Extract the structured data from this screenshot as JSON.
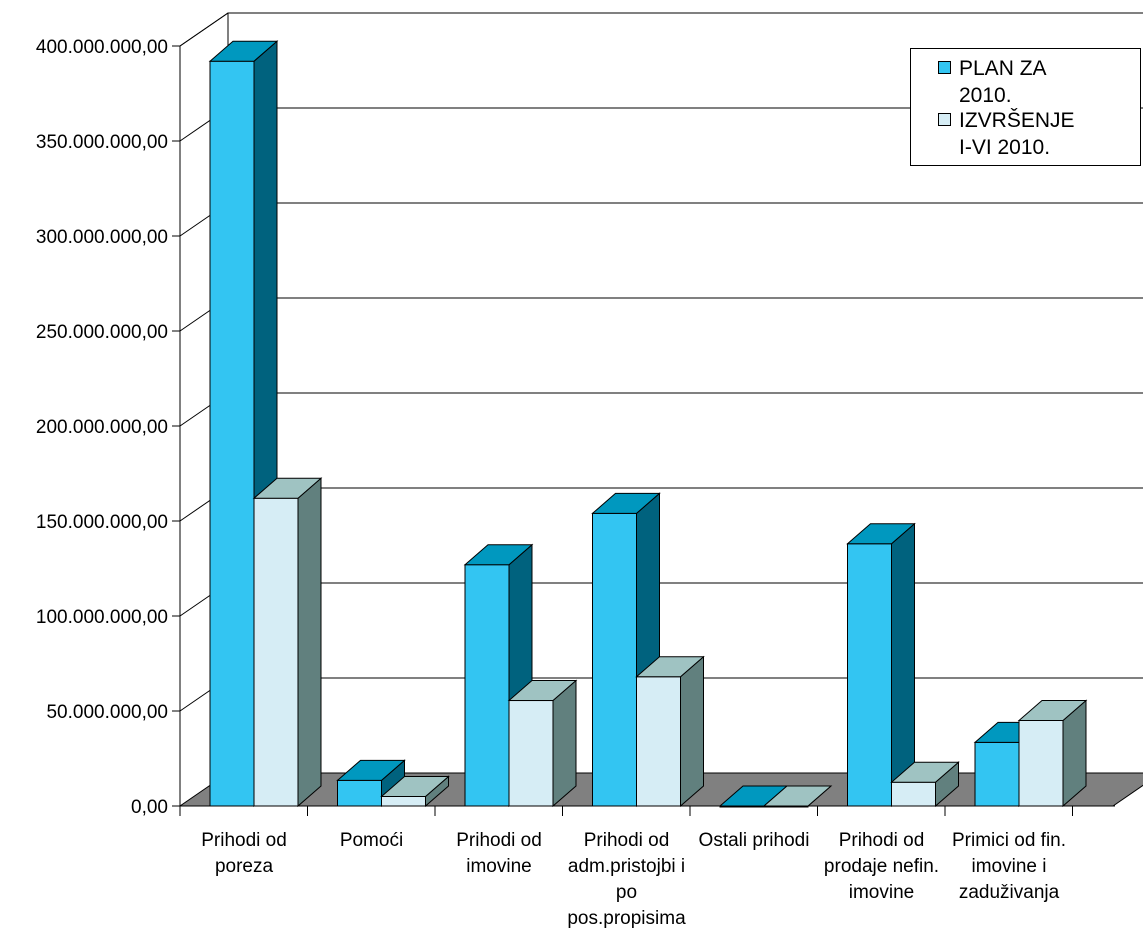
{
  "chart_data": {
    "type": "bar",
    "categories": [
      [
        "Prihodi od",
        "poreza"
      ],
      [
        "Pomoći"
      ],
      [
        "Prihodi od",
        "imovine"
      ],
      [
        "Prihodi od",
        "adm.pristojbi i",
        "po",
        "pos.propisima"
      ],
      [
        "Ostali prihodi"
      ],
      [
        "Prihodi od",
        "prodaje nefin.",
        "imovine"
      ],
      [
        "Primici od fin.",
        "imovine i",
        "zaduživanja"
      ]
    ],
    "series": [
      {
        "name": "PLAN ZA 2010.",
        "values": [
          392000000,
          13500000,
          127000000,
          154000000,
          0,
          138000000,
          33500000
        ],
        "color": "#33c5f2",
        "side_color": "#00627e",
        "top_color": "#0098bf"
      },
      {
        "name": "IZVRŠENJE I-VI 2010.",
        "values": [
          162000000,
          5000000,
          55500000,
          68000000,
          0,
          12500000,
          45000000
        ],
        "color": "#d6edf5",
        "side_color": "#61807e",
        "top_color": "#9fc3c2"
      }
    ],
    "ylim": [
      0,
      400000000
    ],
    "yticks": [
      "0,00",
      "50.000.000,00",
      "100.000.000,00",
      "150.000.000,00",
      "200.000.000,00",
      "250.000.000,00",
      "300.000.000,00",
      "350.000.000,00",
      "400.000.000,00"
    ],
    "grid": true,
    "legend_position": "top-right",
    "legend": {
      "items": [
        {
          "lines": [
            "PLAN ZA",
            "2010."
          ],
          "color": "#33c5f2"
        },
        {
          "lines": [
            "IZVRŠENJE",
            "I-VI 2010."
          ],
          "color": "#d6edf5"
        }
      ]
    },
    "colors": {
      "floor": "#808080",
      "grid": "#000000",
      "axis": "#000000"
    }
  }
}
